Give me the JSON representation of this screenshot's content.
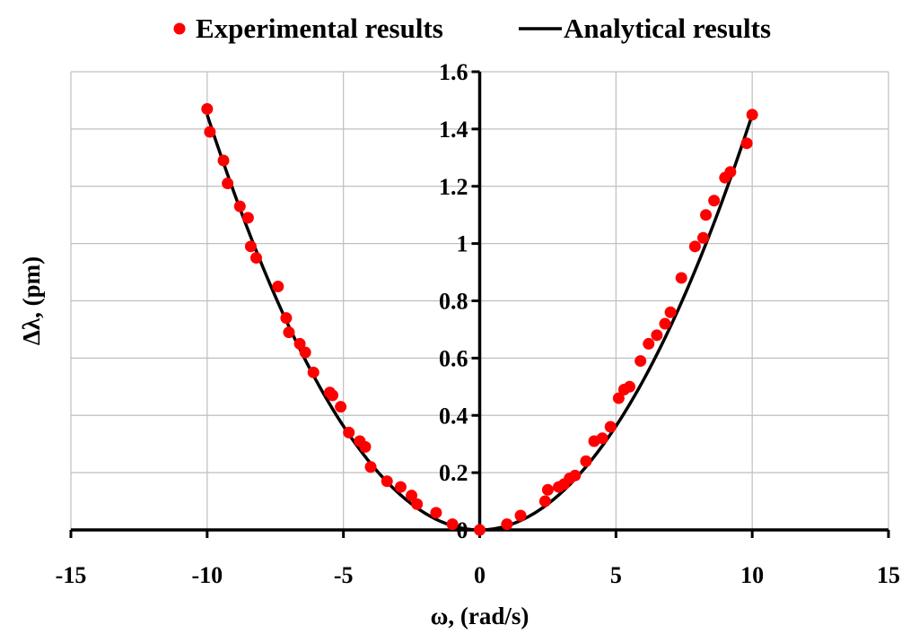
{
  "chart_data": {
    "type": "scatter",
    "title": "",
    "xlabel": "ω, (rad/s)",
    "ylabel": "Δλ, (pm)",
    "xlim": [
      -15,
      15
    ],
    "ylim": [
      0,
      1.6
    ],
    "x_ticks": [
      -15,
      -10,
      -5,
      0,
      5,
      10,
      15
    ],
    "y_ticks": [
      0,
      0.2,
      0.4,
      0.6,
      0.8,
      1,
      1.2,
      1.4,
      1.6
    ],
    "x_tick_labels": [
      "-15",
      "-10",
      "-5",
      "0",
      "5",
      "10",
      "15"
    ],
    "y_tick_labels": [
      "0",
      "0.2",
      "0.4",
      "0.6",
      "0.8",
      "1",
      "1.2",
      "1.4",
      "1.6"
    ],
    "grid": true,
    "legend_position": "top-center",
    "series": [
      {
        "name": "Experimental results",
        "kind": "scatter",
        "color": "#ff0000",
        "points": [
          [
            -10.0,
            1.47
          ],
          [
            -9.9,
            1.39
          ],
          [
            -9.4,
            1.29
          ],
          [
            -9.25,
            1.21
          ],
          [
            -8.8,
            1.13
          ],
          [
            -8.5,
            1.09
          ],
          [
            -8.4,
            0.99
          ],
          [
            -8.2,
            0.95
          ],
          [
            -7.4,
            0.85
          ],
          [
            -7.1,
            0.74
          ],
          [
            -7.0,
            0.69
          ],
          [
            -6.6,
            0.65
          ],
          [
            -6.4,
            0.62
          ],
          [
            -6.1,
            0.55
          ],
          [
            -5.5,
            0.48
          ],
          [
            -5.4,
            0.47
          ],
          [
            -5.1,
            0.43
          ],
          [
            -4.8,
            0.34
          ],
          [
            -4.4,
            0.31
          ],
          [
            -4.2,
            0.29
          ],
          [
            -4.0,
            0.22
          ],
          [
            -3.4,
            0.17
          ],
          [
            -2.9,
            0.15
          ],
          [
            -2.5,
            0.12
          ],
          [
            -2.3,
            0.09
          ],
          [
            -1.6,
            0.06
          ],
          [
            -1.0,
            0.02
          ],
          [
            0.0,
            0.0
          ],
          [
            1.0,
            0.02
          ],
          [
            1.5,
            0.05
          ],
          [
            2.4,
            0.1
          ],
          [
            2.5,
            0.14
          ],
          [
            2.9,
            0.15
          ],
          [
            3.1,
            0.16
          ],
          [
            3.3,
            0.18
          ],
          [
            3.5,
            0.19
          ],
          [
            3.9,
            0.24
          ],
          [
            4.2,
            0.31
          ],
          [
            4.5,
            0.32
          ],
          [
            4.8,
            0.36
          ],
          [
            5.1,
            0.46
          ],
          [
            5.3,
            0.49
          ],
          [
            5.5,
            0.5
          ],
          [
            5.9,
            0.59
          ],
          [
            6.2,
            0.65
          ],
          [
            6.5,
            0.68
          ],
          [
            6.8,
            0.72
          ],
          [
            7.0,
            0.76
          ],
          [
            7.4,
            0.88
          ],
          [
            7.9,
            0.99
          ],
          [
            8.2,
            1.02
          ],
          [
            8.3,
            1.1
          ],
          [
            8.6,
            1.15
          ],
          [
            9.0,
            1.23
          ],
          [
            9.2,
            1.25
          ],
          [
            9.8,
            1.35
          ],
          [
            10.0,
            1.45
          ]
        ]
      },
      {
        "name": "Analytical results",
        "kind": "line",
        "color": "#000000",
        "x_range": [
          -10,
          10
        ],
        "formula_coefficient": 0.0145
      }
    ]
  }
}
